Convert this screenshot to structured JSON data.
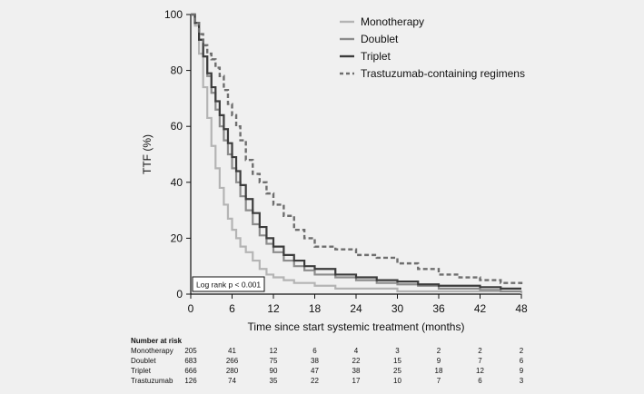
{
  "chart_data": {
    "type": "line",
    "title": "",
    "xlabel": "Time since start systemic treatment (months)",
    "ylabel": "TTF (%)",
    "xlim": [
      0,
      48
    ],
    "ylim": [
      0,
      100
    ],
    "x_ticks": [
      "0",
      "6",
      "12",
      "18",
      "24",
      "30",
      "36",
      "42",
      "48"
    ],
    "y_ticks": [
      "0",
      "20",
      "40",
      "60",
      "80",
      "100"
    ],
    "grid": false,
    "legend_position": "top-right",
    "annotation": "Log rank p < 0.001",
    "series": [
      {
        "name": "Monotherapy",
        "color": "#b4b4b4",
        "dash": "solid",
        "points": [
          [
            0,
            100
          ],
          [
            0.6,
            96
          ],
          [
            1.2,
            86
          ],
          [
            1.8,
            74
          ],
          [
            2.4,
            63
          ],
          [
            3,
            53
          ],
          [
            3.6,
            45
          ],
          [
            4.2,
            38
          ],
          [
            4.8,
            32
          ],
          [
            5.4,
            27
          ],
          [
            6,
            23
          ],
          [
            6.6,
            20
          ],
          [
            7.2,
            17
          ],
          [
            8,
            15
          ],
          [
            9,
            12
          ],
          [
            10,
            9
          ],
          [
            11,
            7
          ],
          [
            12,
            6
          ],
          [
            13.5,
            5
          ],
          [
            15,
            4
          ],
          [
            18,
            3
          ],
          [
            21,
            2
          ],
          [
            24,
            2
          ],
          [
            30,
            1
          ],
          [
            36,
            1
          ],
          [
            42,
            1
          ],
          [
            48,
            0
          ]
        ]
      },
      {
        "name": "Doublet",
        "color": "#8c8c8c",
        "dash": "solid",
        "points": [
          [
            0,
            100
          ],
          [
            0.6,
            97
          ],
          [
            1.2,
            91
          ],
          [
            1.8,
            85
          ],
          [
            2.4,
            78
          ],
          [
            3,
            72
          ],
          [
            3.6,
            66
          ],
          [
            4.2,
            60
          ],
          [
            4.8,
            55
          ],
          [
            5.4,
            50
          ],
          [
            6,
            45
          ],
          [
            6.6,
            40
          ],
          [
            7.2,
            35
          ],
          [
            8,
            30
          ],
          [
            9,
            25
          ],
          [
            10,
            21
          ],
          [
            11,
            18
          ],
          [
            12,
            15
          ],
          [
            13.5,
            12
          ],
          [
            15,
            10
          ],
          [
            16.5,
            8.5
          ],
          [
            18,
            7
          ],
          [
            21,
            6
          ],
          [
            24,
            5
          ],
          [
            27,
            4
          ],
          [
            30,
            3.5
          ],
          [
            33,
            3
          ],
          [
            36,
            2
          ],
          [
            39,
            2
          ],
          [
            42,
            1.5
          ],
          [
            45,
            1
          ],
          [
            48,
            1
          ]
        ]
      },
      {
        "name": "Triplet",
        "color": "#3c3c3c",
        "dash": "solid",
        "points": [
          [
            0,
            100
          ],
          [
            0.6,
            97
          ],
          [
            1.2,
            91
          ],
          [
            1.8,
            85
          ],
          [
            2.4,
            79
          ],
          [
            3,
            74
          ],
          [
            3.6,
            69
          ],
          [
            4.2,
            64
          ],
          [
            4.8,
            59
          ],
          [
            5.4,
            54
          ],
          [
            6,
            49
          ],
          [
            6.6,
            44
          ],
          [
            7.2,
            39
          ],
          [
            8,
            34
          ],
          [
            9,
            29
          ],
          [
            10,
            24
          ],
          [
            11,
            20
          ],
          [
            12,
            17
          ],
          [
            13.5,
            14
          ],
          [
            15,
            12
          ],
          [
            16.5,
            10
          ],
          [
            18,
            9
          ],
          [
            21,
            7
          ],
          [
            24,
            6
          ],
          [
            27,
            5
          ],
          [
            30,
            4.5
          ],
          [
            33,
            3.5
          ],
          [
            36,
            3
          ],
          [
            39,
            3
          ],
          [
            42,
            2.5
          ],
          [
            45,
            2
          ],
          [
            48,
            2
          ]
        ]
      },
      {
        "name": "Trastuzumab-containing regimens",
        "color": "#6e6e6e",
        "dash": "dashed",
        "points": [
          [
            0,
            100
          ],
          [
            0.6,
            97
          ],
          [
            1.2,
            93
          ],
          [
            1.8,
            89
          ],
          [
            2.4,
            86
          ],
          [
            3,
            84
          ],
          [
            3.6,
            81
          ],
          [
            4.2,
            78
          ],
          [
            4.8,
            73
          ],
          [
            5.4,
            68
          ],
          [
            6,
            64
          ],
          [
            6.6,
            60
          ],
          [
            7.2,
            55
          ],
          [
            8,
            48
          ],
          [
            9,
            43
          ],
          [
            10,
            40
          ],
          [
            11,
            36
          ],
          [
            12,
            32
          ],
          [
            13.5,
            28
          ],
          [
            15,
            23
          ],
          [
            16.5,
            20
          ],
          [
            18,
            17
          ],
          [
            21,
            16
          ],
          [
            24,
            14
          ],
          [
            27,
            13
          ],
          [
            30,
            11
          ],
          [
            33,
            9
          ],
          [
            36,
            7
          ],
          [
            39,
            6
          ],
          [
            42,
            5
          ],
          [
            45,
            4
          ],
          [
            48,
            3
          ]
        ]
      }
    ]
  },
  "risk_table": {
    "title": "Number at risk",
    "rows": [
      {
        "label": "Monotherapy",
        "values": [
          "205",
          "41",
          "12",
          "6",
          "4",
          "3",
          "2",
          "2",
          "2"
        ]
      },
      {
        "label": "Doublet",
        "values": [
          "683",
          "266",
          "75",
          "38",
          "22",
          "15",
          "9",
          "7",
          "6"
        ]
      },
      {
        "label": "Triplet",
        "values": [
          "666",
          "280",
          "90",
          "47",
          "38",
          "25",
          "18",
          "12",
          "9"
        ]
      },
      {
        "label": "Trastuzumab",
        "values": [
          "126",
          "74",
          "35",
          "22",
          "17",
          "10",
          "7",
          "6",
          "3"
        ]
      }
    ]
  },
  "colors": {
    "background": "#f0f0f0",
    "axis": "#111111"
  }
}
